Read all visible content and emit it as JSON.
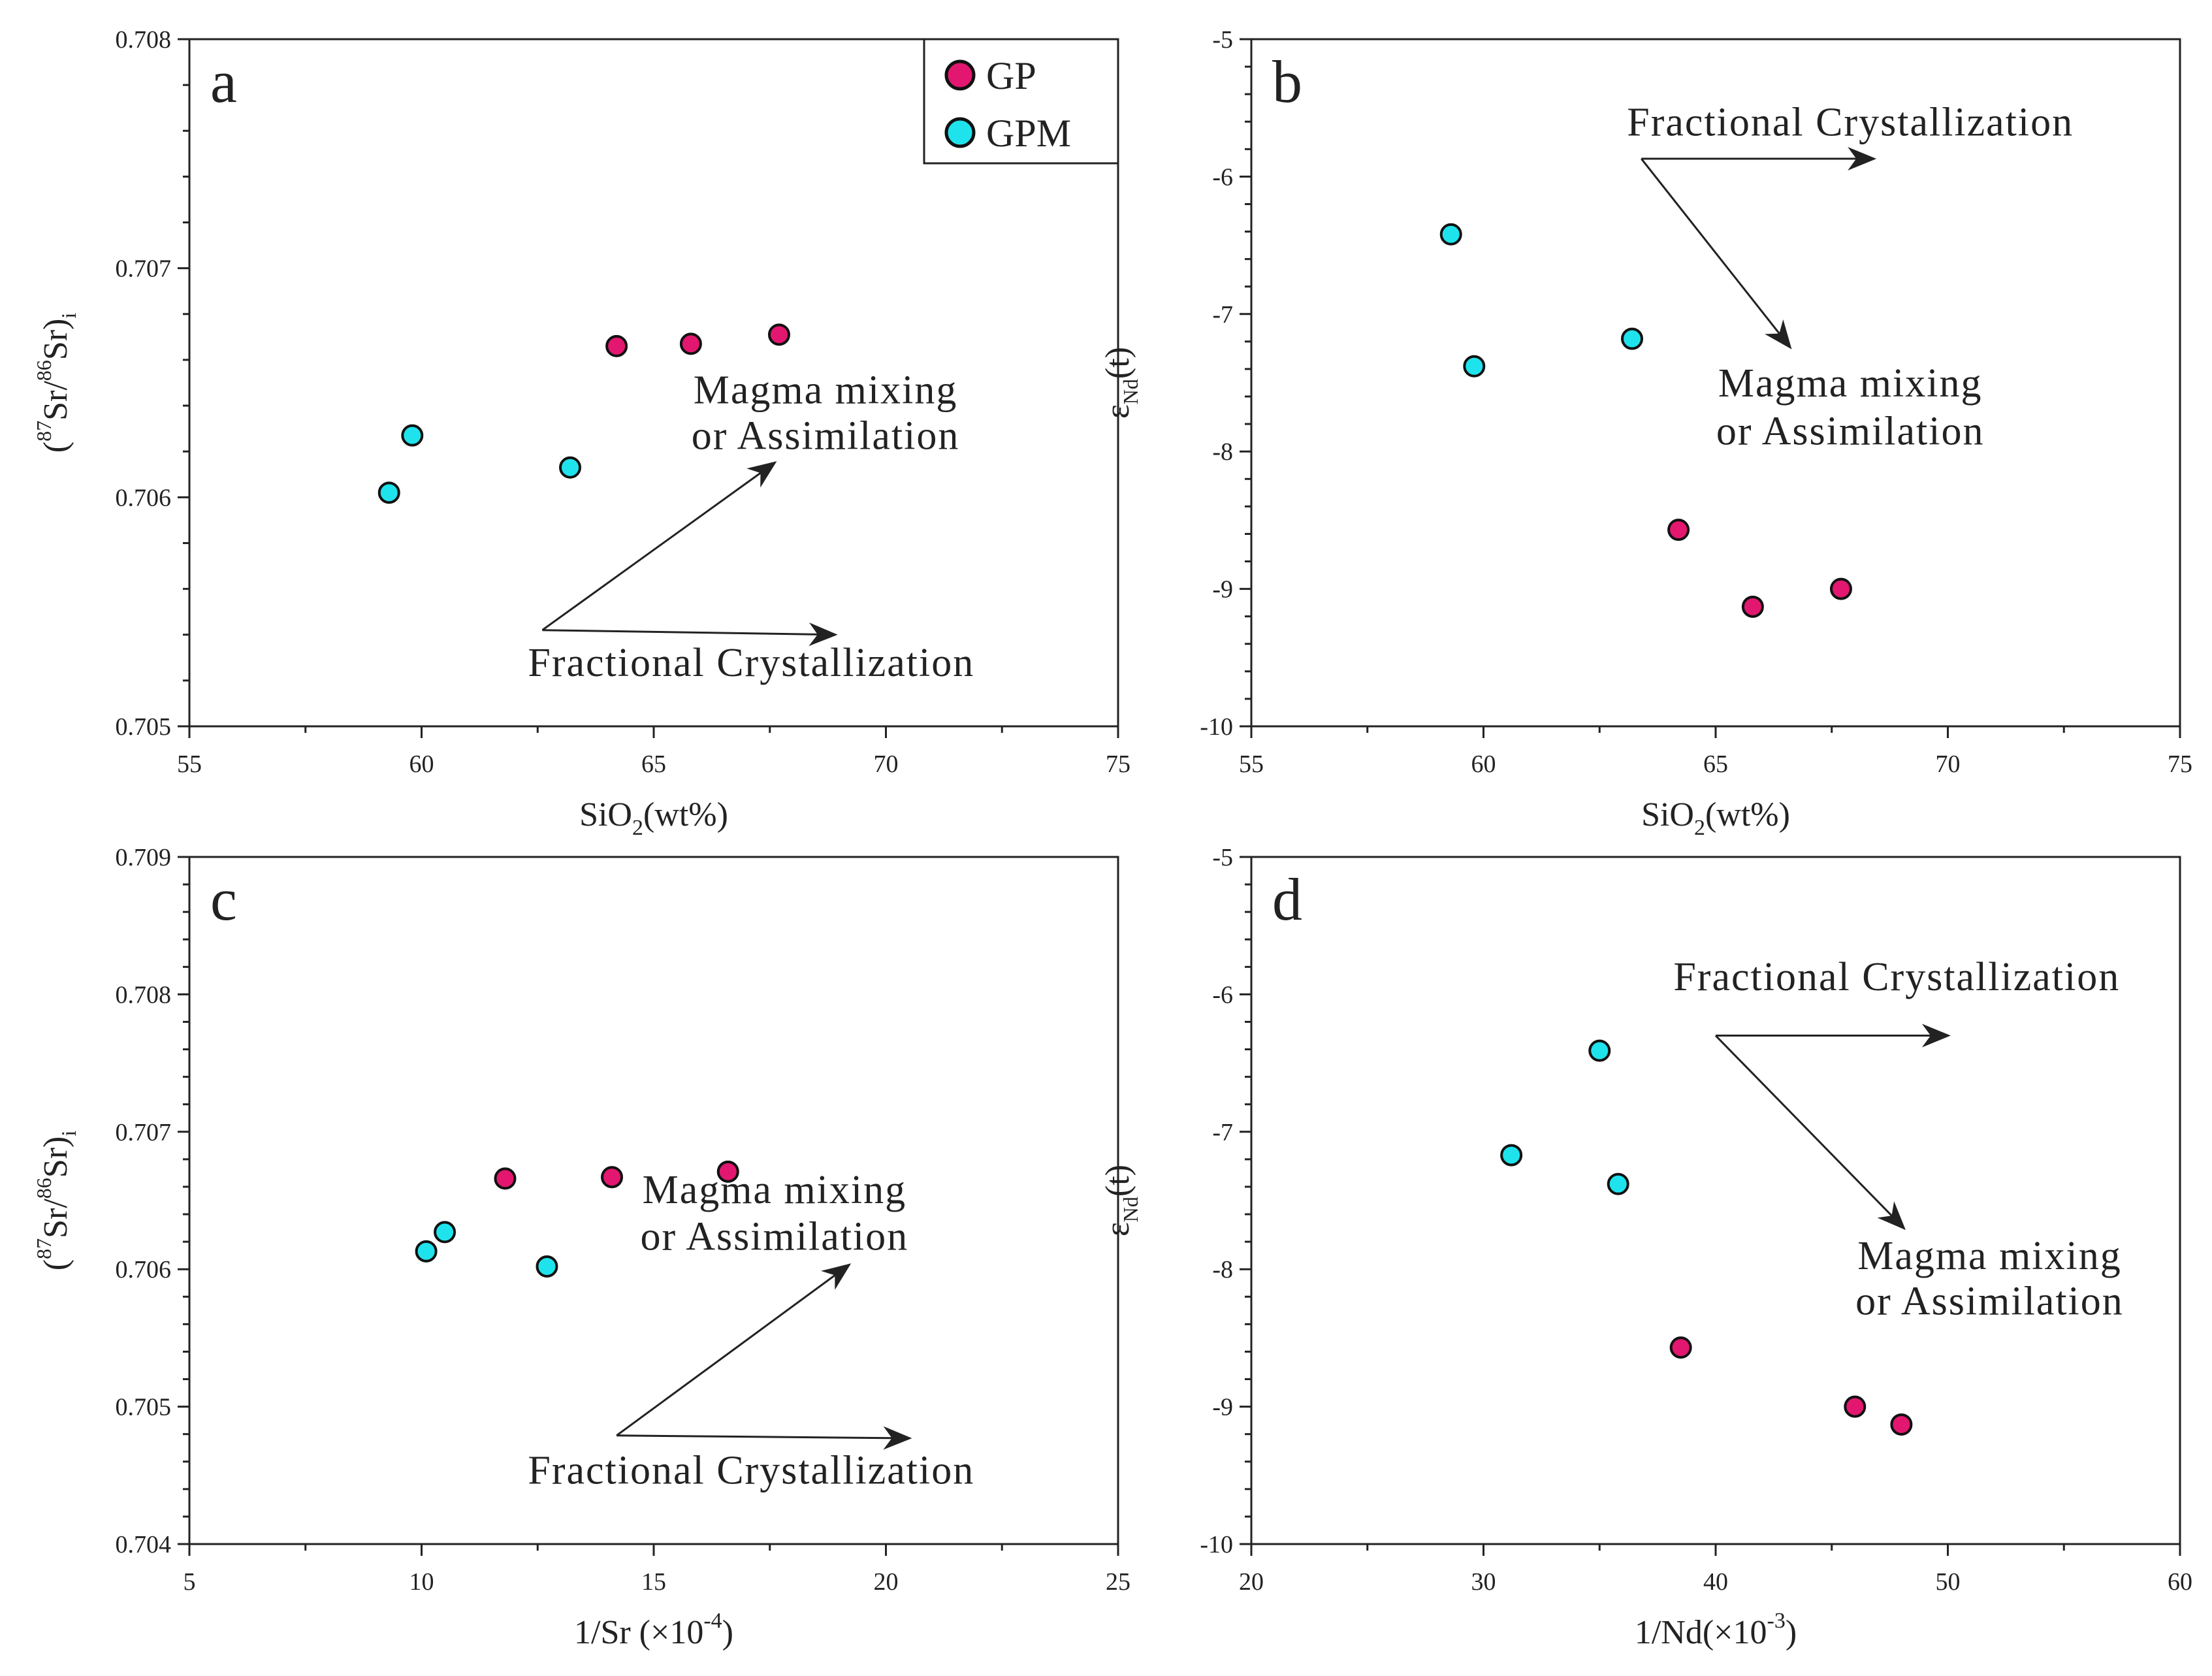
{
  "legend": {
    "items": [
      {
        "label": "GP",
        "color": "#e3176f"
      },
      {
        "label": "GPM",
        "color": "#1fe3ec"
      }
    ]
  },
  "chart_data": [
    {
      "type": "scatter",
      "letter": "a",
      "xlim": [
        55,
        75
      ],
      "ylim": [
        0.705,
        0.708
      ],
      "xticks": [
        55,
        60,
        65,
        70,
        75
      ],
      "yticks": [
        0.705,
        0.706,
        0.707,
        0.708
      ],
      "ydecimals": 3,
      "xlabel": {
        "base": "SiO",
        "sub": "2",
        "suffix": "(wt%)"
      },
      "ylabel": {
        "open": "(",
        "sup1": "87",
        "m1": "Sr/",
        "sup2": "86",
        "m2": "Sr)",
        "sub": "i"
      },
      "series": [
        {
          "name": "GP",
          "color": "#e3176f",
          "points": [
            [
              64.2,
              0.70666
            ],
            [
              65.8,
              0.70667
            ],
            [
              67.7,
              0.70671
            ]
          ]
        },
        {
          "name": "GPM",
          "color": "#1fe3ec",
          "points": [
            [
              59.3,
              0.70602
            ],
            [
              59.8,
              0.70627
            ],
            [
              63.2,
              0.70613
            ]
          ]
        }
      ],
      "annotations": [
        {
          "text": "Magma mixing",
          "x": 68.7,
          "y": 0.70641
        },
        {
          "text": "or Assimilation",
          "x": 68.7,
          "y": 0.70621
        },
        {
          "text": "Fractional Crystallization",
          "x": 67.1,
          "y": 0.70522
        }
      ],
      "arrows": [
        {
          "from": [
            62.6,
            0.70542
          ],
          "to": [
            67.6,
            0.70615
          ]
        },
        {
          "from": [
            62.6,
            0.70542
          ],
          "to": [
            68.9,
            0.7054
          ]
        }
      ]
    },
    {
      "type": "scatter",
      "letter": "b",
      "xlim": [
        55,
        75
      ],
      "ylim": [
        -10,
        -5
      ],
      "xticks": [
        55,
        60,
        65,
        70,
        75
      ],
      "yticks": [
        -10,
        -9,
        -8,
        -7,
        -6,
        -5
      ],
      "ydecimals": 0,
      "xlabel": {
        "base": "SiO",
        "sub": "2",
        "suffix": "(wt%)"
      },
      "ylabel": {
        "base": "ε",
        "sub": "Nd",
        "suffix": "(t)"
      },
      "series": [
        {
          "name": "GP",
          "color": "#e3176f",
          "points": [
            [
              64.2,
              -8.57
            ],
            [
              65.8,
              -9.13
            ],
            [
              67.7,
              -9.0
            ]
          ]
        },
        {
          "name": "GPM",
          "color": "#1fe3ec",
          "points": [
            [
              59.3,
              -6.42
            ],
            [
              59.8,
              -7.38
            ],
            [
              63.2,
              -7.18
            ]
          ]
        }
      ],
      "annotations": [
        {
          "text": "Fractional Crystallization",
          "x": 67.9,
          "y": -5.7
        },
        {
          "text": "Magma mixing",
          "x": 67.9,
          "y": -7.6
        },
        {
          "text": "or Assimilation",
          "x": 67.9,
          "y": -7.95
        }
      ],
      "arrows": [
        {
          "from": [
            63.4,
            -5.87
          ],
          "to": [
            68.4,
            -5.87
          ]
        },
        {
          "from": [
            63.4,
            -5.87
          ],
          "to": [
            66.6,
            -7.24
          ]
        }
      ]
    },
    {
      "type": "scatter",
      "letter": "c",
      "xlim": [
        5,
        25
      ],
      "ylim": [
        0.704,
        0.709
      ],
      "xticks": [
        5,
        10,
        15,
        20,
        25
      ],
      "yticks": [
        0.704,
        0.705,
        0.706,
        0.707,
        0.708,
        0.709
      ],
      "ydecimals": 3,
      "xlabel": {
        "base": "1/Sr (×10",
        "sup": "-4",
        "suffix": ")"
      },
      "ylabel": {
        "open": "(",
        "sup1": "87",
        "m1": "Sr/",
        "sup2": "86",
        "m2": "Sr)",
        "sub": "i"
      },
      "series": [
        {
          "name": "GP",
          "color": "#e3176f",
          "points": [
            [
              11.8,
              0.70666
            ],
            [
              14.1,
              0.70667
            ],
            [
              16.6,
              0.70671
            ]
          ]
        },
        {
          "name": "GPM",
          "color": "#1fe3ec",
          "points": [
            [
              10.1,
              0.70613
            ],
            [
              10.5,
              0.70627
            ],
            [
              12.7,
              0.70602
            ]
          ]
        }
      ],
      "annotations": [
        {
          "text": "Magma mixing",
          "x": 17.6,
          "y": 0.70648
        },
        {
          "text": "or Assimilation",
          "x": 17.6,
          "y": 0.70614
        },
        {
          "text": "Fractional Crystallization",
          "x": 17.1,
          "y": 0.70444
        }
      ],
      "arrows": [
        {
          "from": [
            14.2,
            0.70479
          ],
          "to": [
            19.2,
            0.70603
          ]
        },
        {
          "from": [
            14.2,
            0.70479
          ],
          "to": [
            20.5,
            0.70477
          ]
        }
      ]
    },
    {
      "type": "scatter",
      "letter": "d",
      "xlim": [
        20,
        60
      ],
      "ylim": [
        -10,
        -5
      ],
      "xticks": [
        20,
        30,
        40,
        50,
        60
      ],
      "yticks": [
        -10,
        -9,
        -8,
        -7,
        -6,
        -5
      ],
      "ydecimals": 0,
      "xlabel": {
        "base": "1/Nd(×10",
        "sup": "-3",
        "suffix": ")"
      },
      "ylabel": {
        "base": "ε",
        "sub": "Nd",
        "suffix": "(t)"
      },
      "series": [
        {
          "name": "GP",
          "color": "#e3176f",
          "points": [
            [
              38.5,
              -8.57
            ],
            [
              46.0,
              -9.0
            ],
            [
              48.0,
              -9.13
            ]
          ]
        },
        {
          "name": "GPM",
          "color": "#1fe3ec",
          "points": [
            [
              31.2,
              -7.17
            ],
            [
              35.0,
              -6.41
            ],
            [
              35.8,
              -7.38
            ]
          ]
        }
      ],
      "annotations": [
        {
          "text": "Fractional Crystallization",
          "x": 47.8,
          "y": -5.97
        },
        {
          "text": "Magma mixing",
          "x": 51.8,
          "y": -8.0
        },
        {
          "text": "or Assimilation",
          "x": 51.8,
          "y": -8.33
        }
      ],
      "arrows": [
        {
          "from": [
            40.0,
            -6.3
          ],
          "to": [
            50.0,
            -6.3
          ]
        },
        {
          "from": [
            40.0,
            -6.3
          ],
          "to": [
            48.1,
            -7.7
          ]
        }
      ]
    }
  ]
}
